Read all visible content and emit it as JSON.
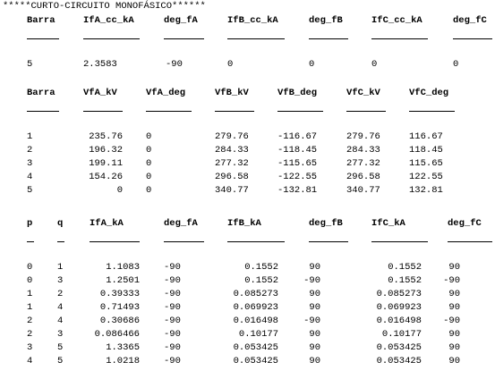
{
  "title": "*****CURTO-CIRCUITO MONOFÁSICO******",
  "table1": {
    "headers": [
      "Barra",
      "IfA_cc_kA",
      "deg_fA",
      "IfB_cc_kA",
      "deg_fB",
      "IfC_cc_kA",
      "deg_fC"
    ],
    "rows": [
      [
        "5",
        "2.3583",
        "-90",
        "0",
        "0",
        "0",
        "0"
      ]
    ]
  },
  "table2": {
    "headers": [
      "Barra",
      "VfA_kV",
      "VfA_deg",
      "VfB_kV",
      "VfB_deg",
      "VfC_kV",
      "VfC_deg"
    ],
    "rows": [
      [
        "1",
        "235.76",
        "0",
        "279.76",
        "-116.67",
        "279.76",
        "116.67"
      ],
      [
        "2",
        "196.32",
        "0",
        "284.33",
        "-118.45",
        "284.33",
        "118.45"
      ],
      [
        "3",
        "199.11",
        "0",
        "277.32",
        "-115.65",
        "277.32",
        "115.65"
      ],
      [
        "4",
        "154.26",
        "0",
        "296.58",
        "-122.55",
        "296.58",
        "122.55"
      ],
      [
        "5",
        "0",
        "0",
        "340.77",
        "-132.81",
        "340.77",
        "132.81"
      ]
    ]
  },
  "table3": {
    "headers": [
      "p",
      "q",
      "IfA_kA",
      "deg_fA",
      "IfB_kA",
      "deg_fB",
      "IfC_kA",
      "deg_fC"
    ],
    "rows": [
      [
        "0",
        "1",
        "1.1083",
        "-90",
        "0.1552",
        "90",
        "0.1552",
        "90"
      ],
      [
        "0",
        "3",
        "1.2501",
        "-90",
        "0.1552",
        "-90",
        "0.1552",
        "-90"
      ],
      [
        "1",
        "2",
        "0.39333",
        "-90",
        "0.085273",
        "90",
        "0.085273",
        "90"
      ],
      [
        "1",
        "4",
        "0.71493",
        "-90",
        "0.069923",
        "90",
        "0.069923",
        "90"
      ],
      [
        "2",
        "4",
        "0.30686",
        "-90",
        "0.016498",
        "-90",
        "0.016498",
        "-90"
      ],
      [
        "2",
        "3",
        "0.086466",
        "-90",
        "0.10177",
        "90",
        "0.10177",
        "90"
      ],
      [
        "3",
        "5",
        "1.3365",
        "-90",
        "0.053425",
        "90",
        "0.053425",
        "90"
      ],
      [
        "4",
        "5",
        "1.0218",
        "-90",
        "0.053425",
        "90",
        "0.053425",
        "90"
      ]
    ]
  }
}
